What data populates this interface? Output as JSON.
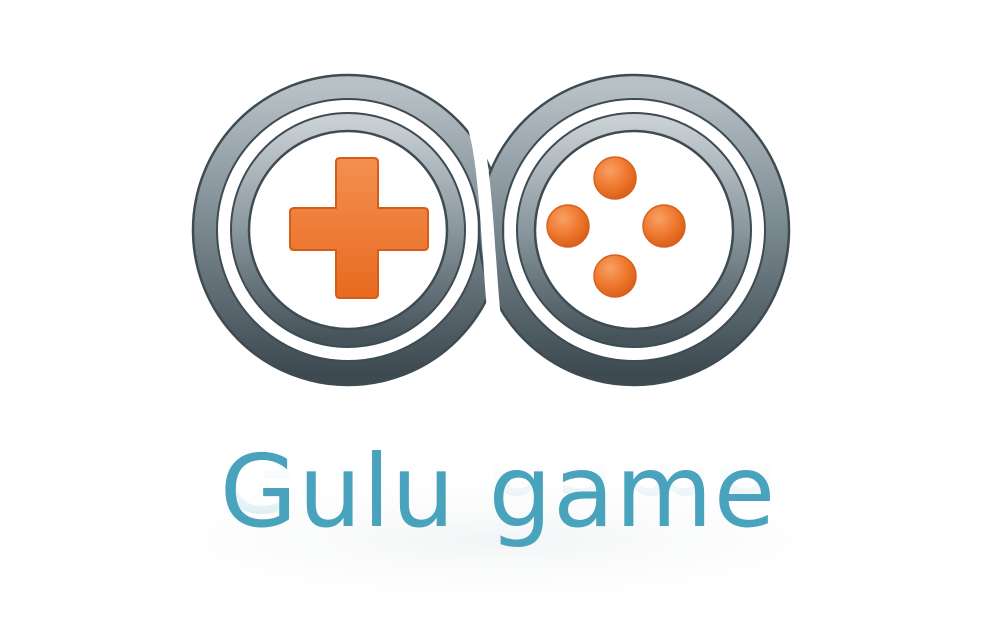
{
  "brand": {
    "name": "Gulu game",
    "text_color": "#4aa3bd",
    "ring_color": "#4f5e67",
    "ring_highlight": "#9aa6ac",
    "accent_color": "#f07a30",
    "accent_edge": "#d8621c"
  },
  "icons": {
    "logo": "infinity-gamepad-logo",
    "left_pad": "dpad-cross-icon",
    "right_pad": "action-buttons-icon"
  }
}
